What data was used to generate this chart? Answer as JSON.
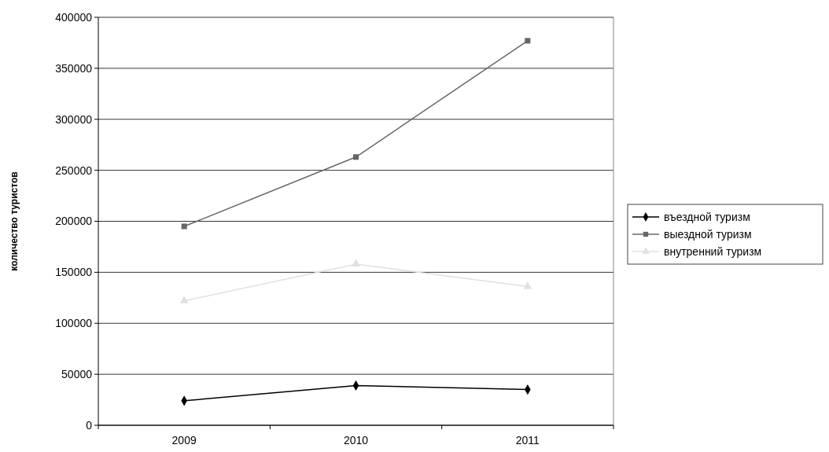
{
  "chart_data": {
    "type": "line",
    "ylabel": "количество туристов",
    "categories": [
      "2009",
      "2010",
      "2011"
    ],
    "series": [
      {
        "name": "въездной туризм",
        "color": "#000000",
        "marker": "diamond",
        "values": [
          24000,
          39000,
          35000
        ]
      },
      {
        "name": "выездной туризм",
        "color": "#666666",
        "marker": "square",
        "values": [
          195000,
          263000,
          377000
        ]
      },
      {
        "name": "внутренний туризм",
        "color": "#e0e0e0",
        "marker": "triangle",
        "values": [
          122000,
          158000,
          136000
        ]
      }
    ],
    "ylim": [
      0,
      400000
    ],
    "yticks": [
      0,
      50000,
      100000,
      150000,
      200000,
      250000,
      300000,
      350000,
      400000
    ],
    "grid": "y",
    "legend": "right"
  }
}
